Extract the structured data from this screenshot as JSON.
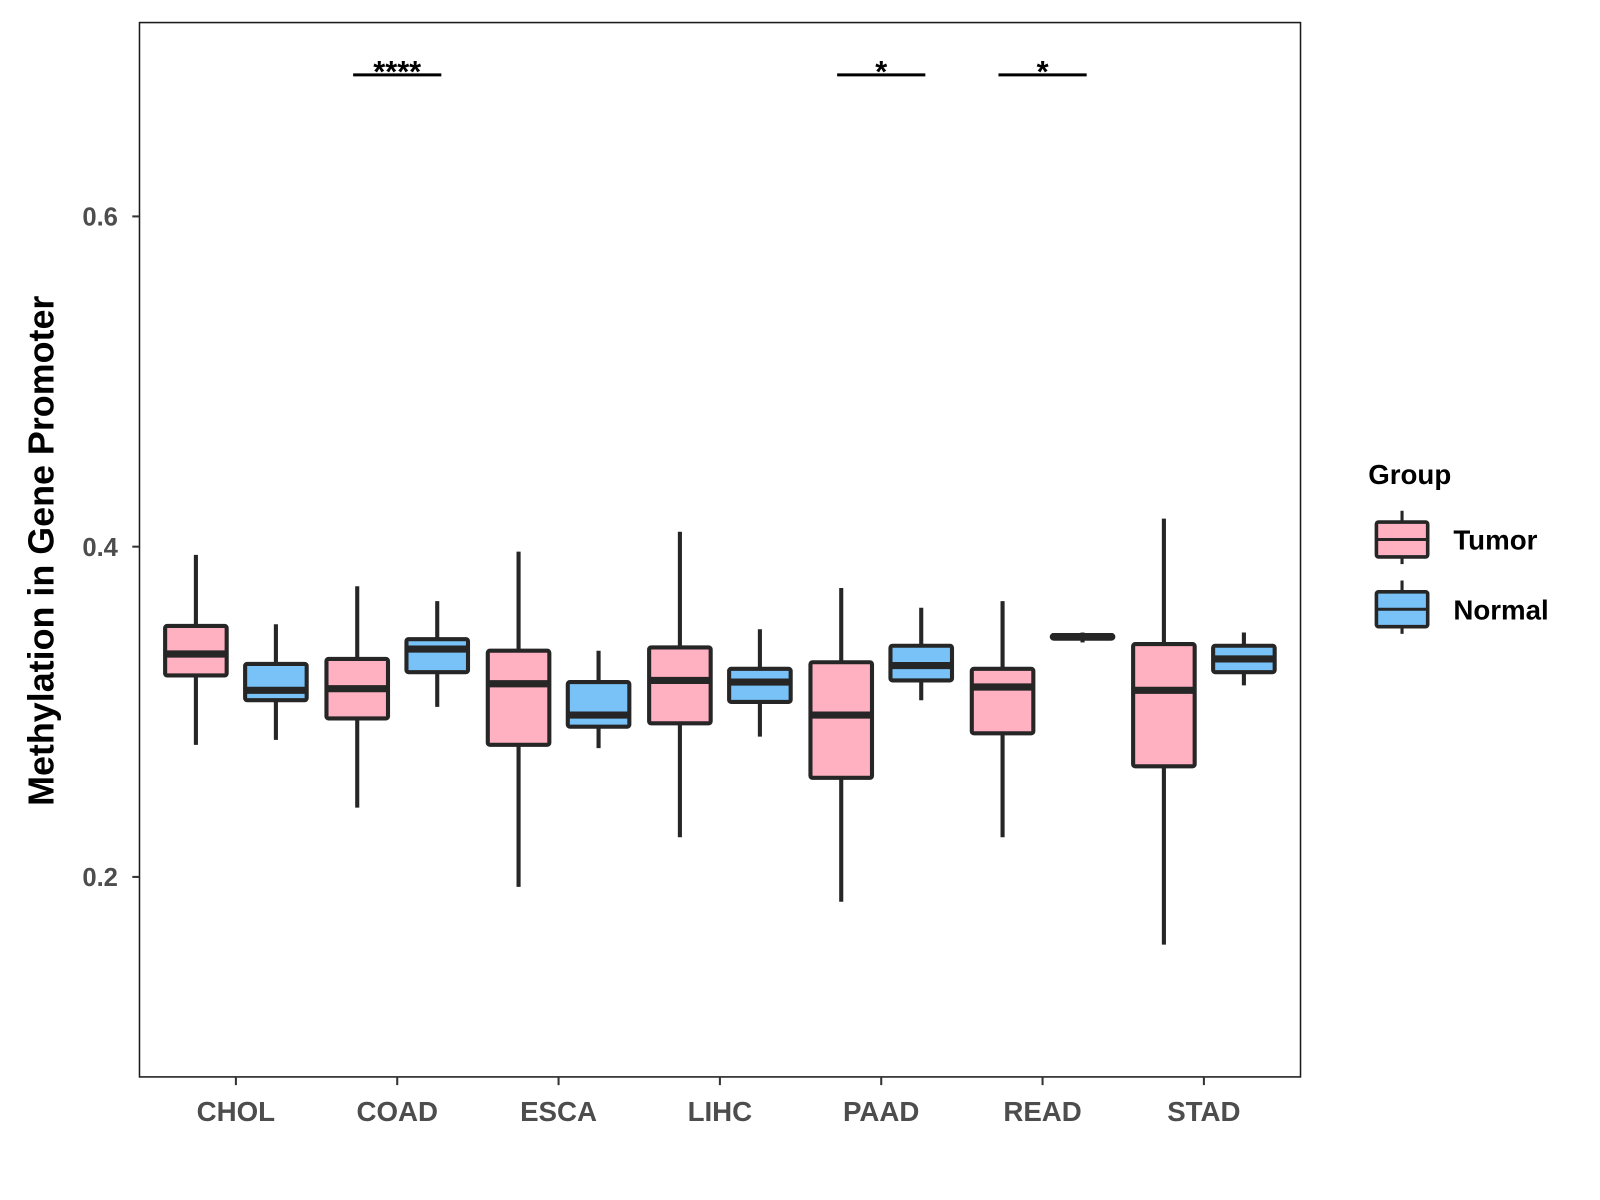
{
  "chart_data": {
    "type": "box",
    "title": "",
    "xlabel": "",
    "ylabel": "Methylation in Gene Promoter",
    "ylim": [
      0.079,
      0.717
    ],
    "yticks": [
      0.2,
      0.4,
      0.6
    ],
    "ytick_labels": [
      "0.2",
      "0.4",
      "0.6"
    ],
    "grid": false,
    "categories": [
      "CHOL",
      "COAD",
      "ESCA",
      "LIHC",
      "PAAD",
      "READ",
      "STAD"
    ],
    "legend": {
      "title": "Group",
      "placement": "right",
      "entries": [
        "Tumor",
        "Normal"
      ]
    },
    "colors": {
      "Tumor": "#FFB0C1",
      "Normal": "#79C2F8",
      "outline": "#262626"
    },
    "series": [
      {
        "name": "Tumor",
        "boxes": [
          {
            "whisker_high": 0.395,
            "q3": 0.352,
            "median": 0.335,
            "q1": 0.322,
            "whisker_low": 0.28
          },
          {
            "whisker_high": 0.376,
            "q3": 0.332,
            "median": 0.314,
            "q1": 0.296,
            "whisker_low": 0.242
          },
          {
            "whisker_high": 0.397,
            "q3": 0.337,
            "median": 0.317,
            "q1": 0.28,
            "whisker_low": 0.194
          },
          {
            "whisker_high": 0.409,
            "q3": 0.339,
            "median": 0.319,
            "q1": 0.293,
            "whisker_low": 0.224
          },
          {
            "whisker_high": 0.375,
            "q3": 0.33,
            "median": 0.298,
            "q1": 0.26,
            "whisker_low": 0.185
          },
          {
            "whisker_high": 0.367,
            "q3": 0.326,
            "median": 0.315,
            "q1": 0.287,
            "whisker_low": 0.224
          },
          {
            "whisker_high": 0.417,
            "q3": 0.341,
            "median": 0.313,
            "q1": 0.267,
            "whisker_low": 0.159
          }
        ]
      },
      {
        "name": "Normal",
        "boxes": [
          {
            "whisker_high": 0.353,
            "q3": 0.329,
            "median": 0.313,
            "q1": 0.307,
            "whisker_low": 0.283
          },
          {
            "whisker_high": 0.367,
            "q3": 0.344,
            "median": 0.338,
            "q1": 0.324,
            "whisker_low": 0.303
          },
          {
            "whisker_high": 0.337,
            "q3": 0.318,
            "median": 0.298,
            "q1": 0.291,
            "whisker_low": 0.278
          },
          {
            "whisker_high": 0.35,
            "q3": 0.326,
            "median": 0.318,
            "q1": 0.306,
            "whisker_low": 0.285
          },
          {
            "whisker_high": 0.363,
            "q3": 0.34,
            "median": 0.328,
            "q1": 0.319,
            "whisker_low": 0.307
          },
          {
            "whisker_high": 0.348,
            "q3": 0.3465,
            "median": 0.3455,
            "q1": 0.3443,
            "whisker_low": 0.342
          },
          {
            "whisker_high": 0.348,
            "q3": 0.34,
            "median": 0.332,
            "q1": 0.324,
            "whisker_low": 0.316
          }
        ]
      }
    ],
    "annotations": [
      {
        "category": "COAD",
        "label": "****"
      },
      {
        "category": "PAAD",
        "label": "*"
      },
      {
        "category": "READ",
        "label": "*"
      }
    ]
  }
}
